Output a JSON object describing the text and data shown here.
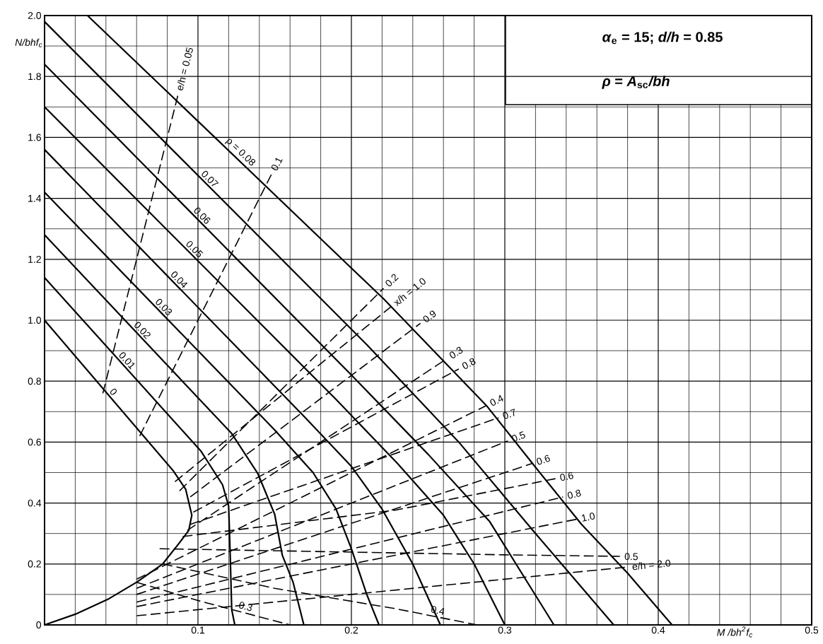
{
  "chart_data": {
    "type": "line",
    "xlabel": "M /bh$^{2}$f$_{c}$",
    "ylabel": "N/bhf$_{c}$",
    "annotations": [
      "*α*$_{e}$ = 15; *d/h* = 0.85",
      "*ρ* = *A*$_{sc}$*/bh*"
    ],
    "xlim": [
      0,
      0.5
    ],
    "ylim": [
      0,
      2.0
    ],
    "xticks": [
      0.1,
      0.2,
      0.3,
      0.4,
      0.5
    ],
    "yticks": [
      0,
      0.2,
      0.4,
      0.6,
      0.8,
      {
        "value": 1.0,
        "label": "1.0"
      },
      1.2,
      1.4,
      1.6,
      1.8,
      {
        "value": 2.0,
        "label": "2.0"
      }
    ],
    "grid": true,
    "series": [
      {
        "name": "0",
        "color": "#000000",
        "line_style": "solid",
        "x": [
          0,
          0.084,
          0.092,
          0.096,
          0.094,
          0.088,
          0.077,
          0.06,
          0.042,
          0.02,
          0
        ],
        "values": [
          1.0,
          0.505,
          0.445,
          0.36,
          0.31,
          0.27,
          0.2,
          0.14,
          0.086,
          0.035,
          0
        ]
      },
      {
        "name": "0.01",
        "color": "#000000",
        "line_style": "solid",
        "x": [
          0,
          0.102,
          0.116,
          0.12,
          0.121,
          0.122,
          0.124
        ],
        "values": [
          1.14,
          0.57,
          0.46,
          0.39,
          0.23,
          0.05,
          0
        ]
      },
      {
        "name": "0.02",
        "color": "#000000",
        "line_style": "solid",
        "x": [
          0,
          0.122,
          0.139,
          0.15,
          0.155,
          0.162,
          0.169
        ],
        "values": [
          1.28,
          0.628,
          0.497,
          0.363,
          0.228,
          0.14,
          0
        ]
      },
      {
        "name": "0.03",
        "color": "#000000",
        "line_style": "solid",
        "x": [
          0,
          0.15,
          0.175,
          0.19,
          0.2,
          0.21,
          0.218
        ],
        "values": [
          1.42,
          0.64,
          0.5,
          0.38,
          0.25,
          0.1,
          0
        ]
      },
      {
        "name": "0.04",
        "color": "#000000",
        "line_style": "solid",
        "x": [
          0,
          0.17,
          0.2,
          0.22,
          0.24,
          0.258
        ],
        "values": [
          1.56,
          0.68,
          0.52,
          0.38,
          0.2,
          0
        ]
      },
      {
        "name": "0.05",
        "color": "#000000",
        "line_style": "solid",
        "x": [
          0,
          0.19,
          0.23,
          0.26,
          0.28,
          0.3
        ],
        "values": [
          1.7,
          0.74,
          0.53,
          0.36,
          0.2,
          0
        ]
      },
      {
        "name": "0.06",
        "color": "#000000",
        "line_style": "solid",
        "x": [
          0,
          0.2,
          0.25,
          0.29,
          0.332
        ],
        "values": [
          1.84,
          0.82,
          0.56,
          0.34,
          0
        ]
      },
      {
        "name": "0.07",
        "color": "#000000",
        "line_style": "solid",
        "x": [
          0,
          0.21,
          0.27,
          0.32,
          0.371
        ],
        "values": [
          1.98,
          0.92,
          0.6,
          0.3,
          0
        ]
      },
      {
        "name": "ρ = 0.08",
        "color": "#000000",
        "line_style": "solid",
        "x": [
          0.028,
          0.221,
          0.288,
          0.318,
          0.35,
          0.38,
          0.409
        ],
        "values": [
          2.0,
          1.07,
          0.72,
          0.53,
          0.33,
          0.17,
          0
        ]
      },
      {
        "name": "e/h = 0.05",
        "color": "#000000",
        "line_style": "dashed",
        "x": [
          0.038,
          0.087
        ],
        "values": [
          0.76,
          1.74
        ]
      },
      {
        "name": "0.1",
        "color": "#000000",
        "line_style": "dashed",
        "x": [
          0.062,
          0.148
        ],
        "values": [
          0.62,
          1.48
        ]
      },
      {
        "name": "0.2",
        "color": "#000000",
        "line_style": "dashed",
        "x": [
          0.088,
          0.221
        ],
        "values": [
          0.44,
          1.105
        ]
      },
      {
        "name": "0.3",
        "color": "#000000",
        "line_style": "dashed",
        "x": [
          0.093,
          0.262
        ],
        "values": [
          0.31,
          0.873
        ]
      },
      {
        "name": "0.4",
        "color": "#000000",
        "line_style": "dashed",
        "x": [
          0.06,
          0.288
        ],
        "values": [
          0.15,
          0.72
        ]
      },
      {
        "name": "0.5",
        "color": "#000000",
        "line_style": "dashed",
        "x": [
          0.06,
          0.302
        ],
        "values": [
          0.12,
          0.604
        ]
      },
      {
        "name": "0.6",
        "color": "#000000",
        "line_style": "dashed",
        "x": [
          0.06,
          0.318
        ],
        "values": [
          0.1,
          0.53
        ]
      },
      {
        "name": "0.8",
        "color": "#000000",
        "line_style": "dashed",
        "x": [
          0.06,
          0.338
        ],
        "values": [
          0.075,
          0.42
        ]
      },
      {
        "name": "1.0",
        "color": "#000000",
        "line_style": "dashed",
        "x": [
          0.06,
          0.347
        ],
        "values": [
          0.06,
          0.347
        ]
      },
      {
        "name": "e/h = 2.0",
        "color": "#000000",
        "line_style": "dashed",
        "x": [
          0.06,
          0.38
        ],
        "values": [
          0.03,
          0.19
        ]
      },
      {
        "name": "x/h = 1.0",
        "color": "#000000",
        "line_style": "dashed",
        "x": [
          0.085,
          0.226
        ],
        "values": [
          0.47,
          1.045
        ]
      },
      {
        "name": "0.9",
        "color": "#000000",
        "line_style": "dashed",
        "x": [
          0.095,
          0.245
        ],
        "values": [
          0.42,
          0.99
        ]
      },
      {
        "name": "0.8",
        "color": "#000000",
        "line_style": "dashed",
        "x": [
          0.097,
          0.27
        ],
        "values": [
          0.37,
          0.84
        ]
      },
      {
        "name": "0.7",
        "color": "#000000",
        "line_style": "dashed",
        "x": [
          0.095,
          0.296
        ],
        "values": [
          0.33,
          0.68
        ]
      },
      {
        "name": "0.6",
        "color": "#000000",
        "line_style": "dashed",
        "x": [
          0.09,
          0.229,
          0.333
        ],
        "values": [
          0.29,
          0.377,
          0.48
        ]
      },
      {
        "name": "0.5",
        "color": "#000000",
        "line_style": "dashed",
        "x": [
          0.075,
          0.3,
          0.375
        ],
        "values": [
          0.25,
          0.23,
          0.225
        ]
      },
      {
        "name": "0.4",
        "color": "#000000",
        "line_style": "dashed",
        "x": [
          0.077,
          0.15,
          0.229,
          0.282
        ],
        "values": [
          0.2,
          0.12,
          0.053,
          0
        ]
      },
      {
        "name": "0.3",
        "color": "#000000",
        "line_style": "dashed",
        "x": [
          0.06,
          0.1,
          0.16
        ],
        "values": [
          0.14,
          0.08,
          0
        ]
      }
    ]
  }
}
